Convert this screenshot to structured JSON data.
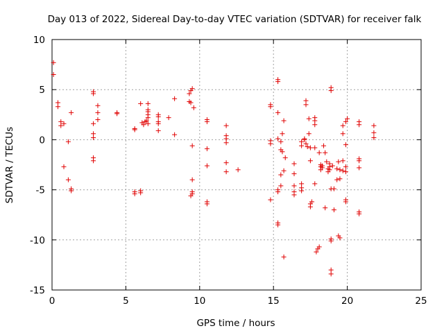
{
  "chart_data": {
    "type": "scatter",
    "title": "Day 013 of 2022, Sidereal Day-to-day VTEC variation (SDTVAR) for receiver falk",
    "xlabel": "GPS time / hours",
    "ylabel": "SDTVAR / TECUs",
    "xlim": [
      0,
      25
    ],
    "ylim": [
      -15,
      10
    ],
    "xticks": [
      0,
      5,
      10,
      15,
      20,
      25
    ],
    "yticks": [
      -15,
      -10,
      -5,
      0,
      5,
      10
    ],
    "xtick_labels": [
      "0",
      "5",
      "10",
      "15",
      "20",
      "25"
    ],
    "ytick_labels": [
      "-15",
      "-10",
      "-5",
      "0",
      "5",
      "10"
    ],
    "grid": true,
    "marker": "plus",
    "color": "#e00000",
    "series": [
      {
        "name": "SDTVAR",
        "points": [
          [
            0.1,
            7.7
          ],
          [
            0.1,
            6.5
          ],
          [
            0.4,
            3.7
          ],
          [
            0.4,
            3.3
          ],
          [
            0.6,
            1.8
          ],
          [
            0.6,
            1.4
          ],
          [
            0.8,
            1.6
          ],
          [
            0.8,
            -2.7
          ],
          [
            1.1,
            -0.2
          ],
          [
            1.1,
            -4.0
          ],
          [
            1.3,
            2.7
          ],
          [
            1.3,
            -4.9
          ],
          [
            1.3,
            -5.1
          ],
          [
            2.8,
            4.8
          ],
          [
            2.8,
            4.6
          ],
          [
            2.8,
            1.6
          ],
          [
            2.8,
            0.6
          ],
          [
            2.8,
            0.2
          ],
          [
            2.8,
            -1.8
          ],
          [
            2.8,
            -2.1
          ],
          [
            3.1,
            3.4
          ],
          [
            3.1,
            2.7
          ],
          [
            3.1,
            2.0
          ],
          [
            4.4,
            2.7
          ],
          [
            4.4,
            2.6
          ],
          [
            5.6,
            1.1
          ],
          [
            5.6,
            1.0
          ],
          [
            5.6,
            -5.2
          ],
          [
            5.6,
            -5.4
          ],
          [
            6.0,
            3.6
          ],
          [
            6.0,
            -5.1
          ],
          [
            6.0,
            -5.3
          ],
          [
            6.1,
            1.7
          ],
          [
            6.2,
            1.5
          ],
          [
            6.3,
            1.8
          ],
          [
            6.4,
            1.9
          ],
          [
            6.5,
            3.6
          ],
          [
            6.5,
            3.0
          ],
          [
            6.5,
            2.8
          ],
          [
            6.5,
            2.5
          ],
          [
            6.5,
            2.2
          ],
          [
            6.5,
            1.6
          ],
          [
            7.2,
            2.5
          ],
          [
            7.2,
            2.3
          ],
          [
            7.2,
            1.8
          ],
          [
            7.2,
            1.6
          ],
          [
            7.2,
            0.9
          ],
          [
            7.9,
            2.2
          ],
          [
            8.3,
            4.1
          ],
          [
            8.3,
            0.5
          ],
          [
            9.3,
            4.6
          ],
          [
            9.3,
            3.8
          ],
          [
            9.4,
            4.9
          ],
          [
            9.4,
            3.7
          ],
          [
            9.4,
            -5.6
          ],
          [
            9.5,
            5.1
          ],
          [
            9.5,
            -0.6
          ],
          [
            9.5,
            -4.0
          ],
          [
            9.5,
            -5.2
          ],
          [
            9.5,
            -5.4
          ],
          [
            9.6,
            3.2
          ],
          [
            10.5,
            2.0
          ],
          [
            10.5,
            1.8
          ],
          [
            10.5,
            -0.9
          ],
          [
            10.5,
            -2.6
          ],
          [
            10.5,
            -6.2
          ],
          [
            10.5,
            -6.4
          ],
          [
            11.8,
            1.4
          ],
          [
            11.8,
            0.4
          ],
          [
            11.8,
            0.1
          ],
          [
            11.8,
            -0.3
          ],
          [
            11.8,
            -2.3
          ],
          [
            11.8,
            -3.2
          ],
          [
            12.6,
            -3.0
          ],
          [
            14.8,
            3.5
          ],
          [
            14.8,
            3.3
          ],
          [
            14.8,
            -0.1
          ],
          [
            14.8,
            -0.4
          ],
          [
            14.8,
            -6.0
          ],
          [
            15.3,
            6.0
          ],
          [
            15.3,
            5.8
          ],
          [
            15.3,
            2.7
          ],
          [
            15.3,
            0.1
          ],
          [
            15.3,
            -5.0
          ],
          [
            15.3,
            -5.2
          ],
          [
            15.3,
            -8.3
          ],
          [
            15.3,
            -8.5
          ],
          [
            15.5,
            -0.2
          ],
          [
            15.5,
            -1.0
          ],
          [
            15.5,
            -3.5
          ],
          [
            15.5,
            -4.6
          ],
          [
            15.6,
            0.6
          ],
          [
            15.6,
            -1.2
          ],
          [
            15.7,
            1.9
          ],
          [
            15.7,
            -3.1
          ],
          [
            15.7,
            -11.7
          ],
          [
            15.8,
            -1.8
          ],
          [
            16.4,
            -2.4
          ],
          [
            16.4,
            -3.4
          ],
          [
            16.4,
            -4.6
          ],
          [
            16.4,
            -5.2
          ],
          [
            16.4,
            -5.5
          ],
          [
            16.9,
            -0.2
          ],
          [
            16.9,
            -0.6
          ],
          [
            16.9,
            -4.4
          ],
          [
            16.9,
            -4.8
          ],
          [
            16.9,
            -5.1
          ],
          [
            17.1,
            0.1
          ],
          [
            17.1,
            0.0
          ],
          [
            17.2,
            3.9
          ],
          [
            17.2,
            3.5
          ],
          [
            17.2,
            -0.4
          ],
          [
            17.3,
            -0.7
          ],
          [
            17.4,
            2.1
          ],
          [
            17.4,
            0.6
          ],
          [
            17.5,
            -0.8
          ],
          [
            17.5,
            -2.1
          ],
          [
            17.5,
            -6.4
          ],
          [
            17.5,
            -6.7
          ],
          [
            17.6,
            -6.2
          ],
          [
            17.8,
            2.2
          ],
          [
            17.8,
            1.9
          ],
          [
            17.8,
            1.5
          ],
          [
            17.8,
            -0.8
          ],
          [
            17.8,
            -4.4
          ],
          [
            17.9,
            -11.2
          ],
          [
            18.0,
            -10.9
          ],
          [
            18.1,
            -10.7
          ],
          [
            18.1,
            -1.3
          ],
          [
            18.2,
            -2.5
          ],
          [
            18.2,
            -2.7
          ],
          [
            18.2,
            -3.0
          ],
          [
            18.3,
            -2.6
          ],
          [
            18.3,
            -2.8
          ],
          [
            18.4,
            -0.6
          ],
          [
            18.5,
            -1.3
          ],
          [
            18.5,
            -6.8
          ],
          [
            18.6,
            -2.2
          ],
          [
            18.7,
            -2.9
          ],
          [
            18.7,
            -3.2
          ],
          [
            18.8,
            -2.4
          ],
          [
            18.8,
            -2.7
          ],
          [
            18.8,
            -3.0
          ],
          [
            18.9,
            5.2
          ],
          [
            18.9,
            4.9
          ],
          [
            18.9,
            -4.9
          ],
          [
            18.9,
            -9.9
          ],
          [
            18.9,
            -10.1
          ],
          [
            18.9,
            -13.0
          ],
          [
            18.9,
            -13.4
          ],
          [
            19.0,
            -2.6
          ],
          [
            19.1,
            -4.9
          ],
          [
            19.1,
            -7.0
          ],
          [
            19.3,
            -2.9
          ],
          [
            19.3,
            -4.0
          ],
          [
            19.4,
            -2.2
          ],
          [
            19.4,
            -9.6
          ],
          [
            19.5,
            -3.0
          ],
          [
            19.5,
            -3.9
          ],
          [
            19.5,
            -9.8
          ],
          [
            19.7,
            1.4
          ],
          [
            19.7,
            0.6
          ],
          [
            19.7,
            -2.1
          ],
          [
            19.7,
            -3.1
          ],
          [
            19.9,
            1.8
          ],
          [
            19.9,
            -0.5
          ],
          [
            19.9,
            -2.7
          ],
          [
            19.9,
            -3.2
          ],
          [
            19.9,
            -6.0
          ],
          [
            19.9,
            -6.2
          ],
          [
            20.0,
            2.1
          ],
          [
            20.8,
            1.8
          ],
          [
            20.8,
            1.5
          ],
          [
            20.8,
            -1.9
          ],
          [
            20.8,
            -2.1
          ],
          [
            20.8,
            -2.8
          ],
          [
            20.8,
            -7.2
          ],
          [
            20.8,
            -7.4
          ],
          [
            21.8,
            1.4
          ],
          [
            21.8,
            0.7
          ],
          [
            21.8,
            0.2
          ]
        ]
      }
    ]
  }
}
